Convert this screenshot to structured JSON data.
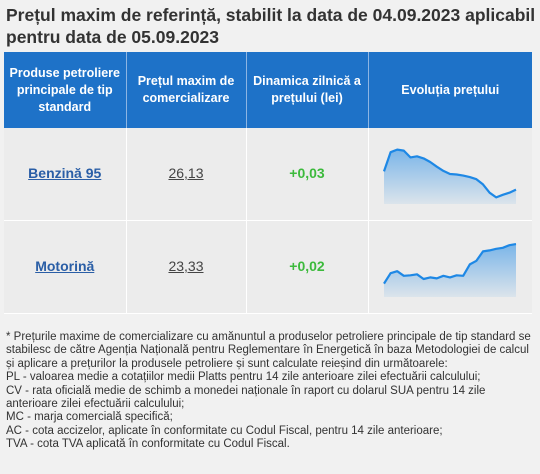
{
  "title": "Prețul maxim de referință, stabilit la data de 04.09.2023 aplicabil pentru data de 05.09.2023",
  "table": {
    "headers": [
      "Produse petroliere principale de tip standard",
      "Prețul maxim de comercializare",
      "Dinamica zilnică a prețului (lei)",
      "Evoluția prețului"
    ],
    "rows": [
      {
        "product": "Benzină 95",
        "price": "26,13",
        "dynamic": "+0,03"
      },
      {
        "product": "Motorină",
        "price": "23,33",
        "dynamic": "+0,02"
      }
    ]
  },
  "chart_data": [
    {
      "type": "area",
      "values": [
        0.55,
        0.92,
        0.97,
        0.95,
        0.82,
        0.84,
        0.8,
        0.73,
        0.64,
        0.56,
        0.5,
        0.49,
        0.47,
        0.44,
        0.4,
        0.3,
        0.14,
        0.05,
        0.1,
        0.14,
        0.2
      ],
      "color": "#1e88e5"
    },
    {
      "type": "area",
      "values": [
        0.18,
        0.38,
        0.42,
        0.33,
        0.34,
        0.36,
        0.27,
        0.3,
        0.28,
        0.33,
        0.3,
        0.34,
        0.33,
        0.55,
        0.62,
        0.8,
        0.82,
        0.85,
        0.87,
        0.92,
        0.94
      ],
      "color": "#1e88e5"
    }
  ],
  "notes": [
    "* Prețurile maxime de comercializare cu amănuntul a produselor petroliere principale de tip standard se stabilesc de către Agenția Națională pentru Reglementare în Energetică în baza Metodologiei de calcul și aplicare a prețurilor la produsele petroliere și sunt calculate reieșind din următoarele:",
    "PL - valoarea medie a cotațiilor medii Platts pentru 14 zile anterioare zilei efectuării calculului;",
    "CV - rata oficială medie de schimb a monedei naționale în raport cu dolarul SUA pentru 14 zile anterioare zilei efectuării calculului;",
    "MC - marja comercială specifică;",
    "AC - cota accizelor, aplicate în conformitate cu Codul Fiscal, pentru 14 zile anterioare;",
    "TVA - cota TVA aplicată în conformitate cu Codul Fiscal."
  ]
}
